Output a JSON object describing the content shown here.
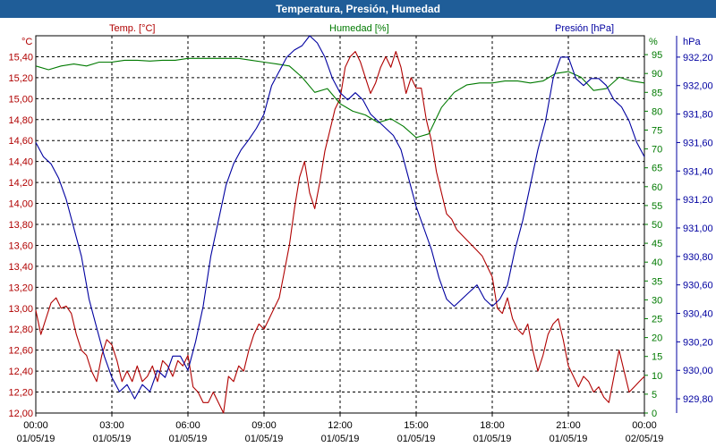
{
  "window": {
    "title": "Temperatura, Presión, Humedad"
  },
  "colors": {
    "temp": "#b00000",
    "humidity": "#007a00",
    "pressure": "#0000a0",
    "grid": "#000000"
  },
  "chart_data": {
    "type": "line",
    "title": "Temperatura, Presión, Humedad",
    "x_ticks": [
      {
        "time": "00:00",
        "date": "01/05/19"
      },
      {
        "time": "03:00",
        "date": "01/05/19"
      },
      {
        "time": "06:00",
        "date": "01/05/19"
      },
      {
        "time": "09:00",
        "date": "01/05/19"
      },
      {
        "time": "12:00",
        "date": "01/05/19"
      },
      {
        "time": "15:00",
        "date": "01/05/19"
      },
      {
        "time": "18:00",
        "date": "01/05/19"
      },
      {
        "time": "21:00",
        "date": "01/05/19"
      },
      {
        "time": "00:00",
        "date": "02/05/19"
      }
    ],
    "x_range_hours": [
      0,
      24
    ],
    "axes": {
      "temp": {
        "label": "Temp. [°C]",
        "unit": "°C",
        "range": [
          12.0,
          15.6
        ],
        "ticks": [
          "12,00",
          "12,20",
          "12,40",
          "12,60",
          "12,80",
          "13,00",
          "13,20",
          "13,40",
          "13,60",
          "13,80",
          "14,00",
          "14,20",
          "14,40",
          "14,60",
          "14,80",
          "15,00",
          "15,20",
          "15,40"
        ]
      },
      "humidity": {
        "label": "Humedad [%]",
        "unit": "%",
        "range": [
          0,
          100
        ],
        "ticks": [
          "0",
          "5",
          "10",
          "15",
          "20",
          "25",
          "30",
          "35",
          "40",
          "45",
          "50",
          "55",
          "60",
          "65",
          "70",
          "75",
          "80",
          "85",
          "90",
          "95"
        ]
      },
      "pressure": {
        "label": "Presión [hPa]",
        "unit": "hPa",
        "range": [
          929.7,
          932.35
        ],
        "ticks": [
          "929,80",
          "930,00",
          "930,20",
          "930,40",
          "930,60",
          "930,80",
          "931,00",
          "931,20",
          "931,40",
          "931,60",
          "931,80",
          "932,00",
          "932,20"
        ]
      }
    },
    "grid": true,
    "series": [
      {
        "name": "Temp. [°C]",
        "axis": "temp",
        "x": [
          0,
          0.2,
          0.4,
          0.6,
          0.8,
          1.0,
          1.2,
          1.4,
          1.6,
          1.8,
          2.0,
          2.2,
          2.4,
          2.6,
          2.8,
          3.0,
          3.2,
          3.4,
          3.6,
          3.8,
          4.0,
          4.2,
          4.4,
          4.6,
          4.8,
          5.0,
          5.2,
          5.4,
          5.6,
          5.8,
          6.0,
          6.2,
          6.4,
          6.6,
          6.8,
          7.0,
          7.2,
          7.4,
          7.6,
          7.8,
          8.0,
          8.2,
          8.4,
          8.6,
          8.8,
          9.0,
          9.2,
          9.4,
          9.6,
          9.8,
          10.0,
          10.2,
          10.4,
          10.6,
          10.8,
          11.0,
          11.2,
          11.4,
          11.6,
          11.8,
          12.0,
          12.2,
          12.4,
          12.6,
          12.8,
          13.0,
          13.2,
          13.4,
          13.6,
          13.8,
          14.0,
          14.2,
          14.4,
          14.6,
          14.8,
          15.0,
          15.2,
          15.4,
          15.6,
          15.8,
          16.0,
          16.2,
          16.4,
          16.6,
          16.8,
          17.0,
          17.2,
          17.4,
          17.6,
          17.8,
          18.0,
          18.2,
          18.4,
          18.6,
          18.8,
          19.0,
          19.2,
          19.4,
          19.6,
          19.8,
          20.0,
          20.2,
          20.4,
          20.6,
          20.8,
          21.0,
          21.2,
          21.4,
          21.6,
          21.8,
          22.0,
          22.2,
          22.4,
          22.6,
          22.8,
          23.0,
          23.2,
          23.4,
          23.6,
          23.8,
          24.0
        ],
        "y": [
          12.98,
          12.75,
          12.9,
          13.05,
          13.1,
          13.0,
          13.02,
          12.95,
          12.75,
          12.6,
          12.55,
          12.4,
          12.3,
          12.55,
          12.7,
          12.65,
          12.5,
          12.3,
          12.4,
          12.3,
          12.45,
          12.3,
          12.35,
          12.45,
          12.3,
          12.5,
          12.45,
          12.35,
          12.5,
          12.45,
          12.55,
          12.25,
          12.2,
          12.1,
          12.1,
          12.2,
          12.1,
          12.0,
          12.35,
          12.3,
          12.45,
          12.4,
          12.6,
          12.75,
          12.85,
          12.8,
          12.9,
          13.0,
          13.1,
          13.35,
          13.6,
          13.95,
          14.25,
          14.4,
          14.1,
          13.95,
          14.2,
          14.5,
          14.7,
          14.9,
          15.0,
          15.3,
          15.4,
          15.45,
          15.35,
          15.2,
          15.05,
          15.15,
          15.3,
          15.4,
          15.3,
          15.45,
          15.3,
          15.05,
          15.2,
          15.1,
          15.1,
          14.8,
          14.6,
          14.3,
          14.1,
          13.9,
          13.85,
          13.75,
          13.7,
          13.65,
          13.6,
          13.55,
          13.5,
          13.4,
          13.3,
          13.0,
          12.95,
          13.1,
          12.9,
          12.8,
          12.75,
          12.85,
          12.6,
          12.4,
          12.55,
          12.75,
          12.85,
          12.9,
          12.7,
          12.45,
          12.35,
          12.25,
          12.35,
          12.3,
          12.2,
          12.25,
          12.15,
          12.1,
          12.35,
          12.6,
          12.4,
          12.2,
          12.25,
          12.3,
          12.35
        ],
        "color": "#b00000"
      },
      {
        "name": "Humedad [%]",
        "axis": "humidity",
        "x": [
          0,
          0.5,
          1.0,
          1.5,
          2.0,
          2.5,
          3.0,
          3.5,
          4.0,
          4.5,
          5.0,
          5.5,
          6.0,
          6.5,
          7.0,
          7.5,
          8.0,
          8.5,
          9.0,
          9.5,
          10.0,
          10.5,
          11.0,
          11.5,
          12.0,
          12.5,
          13.0,
          13.5,
          14.0,
          14.5,
          15.0,
          15.5,
          16.0,
          16.5,
          17.0,
          17.5,
          18.0,
          18.5,
          19.0,
          19.5,
          20.0,
          20.5,
          21.0,
          21.5,
          22.0,
          22.5,
          23.0,
          23.5,
          24.0
        ],
        "y": [
          92,
          91,
          92,
          92.5,
          92,
          93,
          93,
          93.5,
          93.5,
          93.3,
          93.5,
          93.5,
          94,
          94,
          94,
          94,
          94,
          93.5,
          93,
          92.5,
          92,
          89,
          85,
          86,
          82,
          80,
          79,
          77,
          78,
          76,
          73,
          74,
          81,
          85,
          87,
          87.5,
          87.5,
          88,
          88,
          87.5,
          88,
          90,
          90.5,
          89,
          85.5,
          86,
          89,
          88,
          87.5
        ],
        "color": "#007a00"
      },
      {
        "name": "Presión [hPa]",
        "axis": "pressure",
        "x": [
          0,
          0.3,
          0.6,
          0.9,
          1.2,
          1.5,
          1.8,
          2.1,
          2.4,
          2.7,
          3.0,
          3.3,
          3.6,
          3.9,
          4.2,
          4.5,
          4.8,
          5.1,
          5.4,
          5.7,
          6.0,
          6.3,
          6.6,
          6.9,
          7.2,
          7.5,
          7.8,
          8.1,
          8.4,
          8.7,
          9.0,
          9.3,
          9.6,
          9.9,
          10.2,
          10.5,
          10.8,
          11.1,
          11.4,
          11.7,
          12.0,
          12.3,
          12.6,
          12.9,
          13.2,
          13.5,
          13.8,
          14.1,
          14.4,
          14.7,
          15.0,
          15.3,
          15.6,
          15.9,
          16.2,
          16.5,
          16.8,
          17.1,
          17.4,
          17.7,
          18.0,
          18.3,
          18.6,
          18.9,
          19.2,
          19.5,
          19.8,
          20.1,
          20.4,
          20.7,
          21.0,
          21.3,
          21.6,
          21.9,
          22.2,
          22.5,
          22.8,
          23.1,
          23.4,
          23.7,
          24.0
        ],
        "y": [
          931.6,
          931.5,
          931.45,
          931.35,
          931.2,
          931.0,
          930.8,
          930.5,
          930.3,
          930.1,
          929.95,
          929.85,
          929.9,
          929.8,
          929.9,
          929.85,
          930.0,
          929.95,
          930.1,
          930.1,
          930.0,
          930.2,
          930.45,
          930.8,
          931.05,
          931.3,
          931.45,
          931.55,
          931.62,
          931.7,
          931.8,
          932.0,
          932.1,
          932.2,
          932.25,
          932.28,
          932.35,
          932.3,
          932.2,
          932.05,
          931.95,
          931.9,
          931.95,
          931.9,
          931.8,
          931.75,
          931.7,
          931.65,
          931.55,
          931.35,
          931.15,
          931.0,
          930.85,
          930.65,
          930.5,
          930.45,
          930.5,
          930.55,
          930.6,
          930.5,
          930.45,
          930.5,
          930.6,
          930.85,
          931.05,
          931.3,
          931.55,
          931.75,
          932.05,
          932.2,
          932.2,
          932.05,
          932.0,
          932.05,
          932.05,
          932.0,
          931.9,
          931.85,
          931.75,
          931.6,
          931.5
        ],
        "color": "#0000a0"
      }
    ]
  }
}
